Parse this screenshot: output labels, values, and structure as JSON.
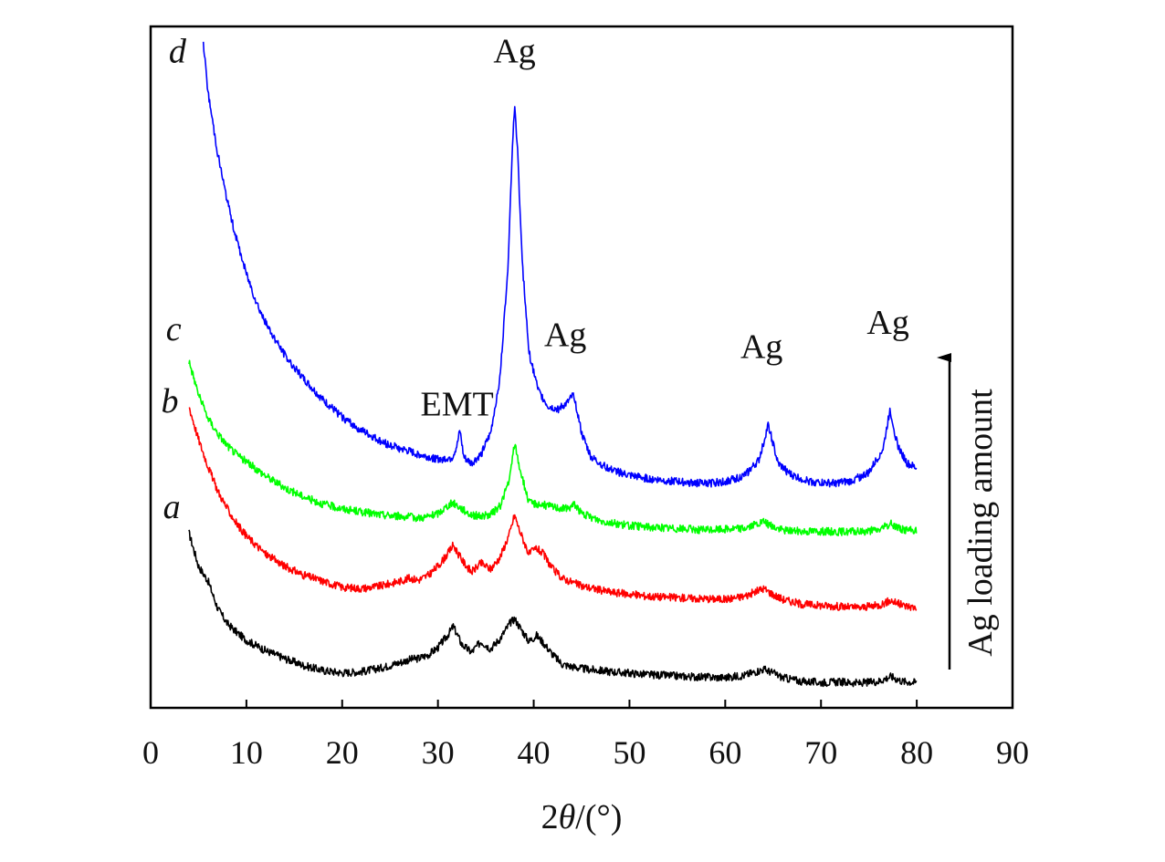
{
  "chart_data": {
    "type": "line",
    "title": "",
    "xlabel": "2θ/(°)",
    "xlabel_parts": {
      "prefix": "2",
      "symbol": "θ",
      "suffix": "/(°)"
    },
    "ylabel": "",
    "xlim": [
      0,
      90
    ],
    "xticks": [
      "0",
      "10",
      "20",
      "30",
      "40",
      "50",
      "60",
      "70",
      "80",
      "90"
    ],
    "yticks": [],
    "grid": false,
    "legend": "none",
    "series": [
      {
        "name": "a",
        "color": "#000000",
        "x": [
          4,
          5,
          6,
          7,
          8,
          9,
          10,
          12,
          14,
          16,
          18,
          20,
          22,
          24,
          26,
          27,
          28,
          29,
          30,
          31,
          31.6,
          32.5,
          33.5,
          34.5,
          35.5,
          36.5,
          37.5,
          38,
          38.5,
          39.5,
          40.3,
          41,
          42,
          43,
          45,
          48,
          52,
          56,
          60,
          62,
          64,
          65,
          66,
          68,
          70,
          72,
          74,
          76,
          77.3,
          78.5,
          80
        ],
        "y": [
          2.9,
          2.35,
          2.1,
          1.65,
          1.4,
          1.25,
          1.12,
          0.95,
          0.82,
          0.7,
          0.62,
          0.58,
          0.6,
          0.66,
          0.75,
          0.8,
          0.82,
          0.88,
          1.0,
          1.2,
          1.35,
          1.05,
          0.92,
          1.1,
          0.98,
          1.15,
          1.4,
          1.48,
          1.35,
          1.1,
          1.2,
          1.08,
          0.88,
          0.72,
          0.65,
          0.6,
          0.55,
          0.52,
          0.5,
          0.54,
          0.64,
          0.58,
          0.5,
          0.44,
          0.42,
          0.43,
          0.41,
          0.44,
          0.52,
          0.44,
          0.42
        ]
      },
      {
        "name": "b",
        "color": "#ff0000",
        "x": [
          4,
          5,
          6,
          7,
          8,
          9,
          10,
          12,
          14,
          16,
          18,
          20,
          22,
          24,
          26,
          27,
          28,
          29,
          30,
          31,
          31.6,
          32.5,
          33.5,
          34.5,
          35.5,
          36.5,
          37.5,
          38,
          38.5,
          39.5,
          40.3,
          41,
          42,
          43,
          45,
          48,
          52,
          56,
          60,
          62,
          64,
          65,
          66,
          68,
          70,
          72,
          74,
          76,
          77.3,
          78.5,
          80
        ],
        "y": [
          5.0,
          4.45,
          4.0,
          3.6,
          3.3,
          3.05,
          2.85,
          2.55,
          2.35,
          2.2,
          2.1,
          2.0,
          1.98,
          2.02,
          2.1,
          2.15,
          2.12,
          2.2,
          2.35,
          2.55,
          2.7,
          2.45,
          2.25,
          2.4,
          2.3,
          2.5,
          2.9,
          3.2,
          2.95,
          2.55,
          2.65,
          2.55,
          2.3,
          2.15,
          2.02,
          1.92,
          1.85,
          1.82,
          1.8,
          1.85,
          1.98,
          1.88,
          1.8,
          1.72,
          1.7,
          1.68,
          1.66,
          1.7,
          1.78,
          1.7,
          1.66
        ]
      },
      {
        "name": "c",
        "color": "#00ff00",
        "x": [
          4,
          5,
          6,
          7,
          8,
          9,
          10,
          12,
          14,
          16,
          18,
          20,
          22,
          24,
          26,
          28,
          29,
          30,
          31,
          31.6,
          32.5,
          33.5,
          34.5,
          35.5,
          36.5,
          37.5,
          38,
          38.5,
          39.5,
          40.5,
          41.5,
          42.5,
          43.5,
          44.3,
          45,
          47,
          50,
          54,
          58,
          62,
          64,
          65,
          66,
          68,
          70,
          72,
          74,
          76,
          77.3,
          78.5,
          80
        ],
        "y": [
          5.75,
          5.2,
          4.8,
          4.55,
          4.35,
          4.2,
          4.08,
          3.85,
          3.65,
          3.5,
          3.38,
          3.3,
          3.25,
          3.2,
          3.18,
          3.15,
          3.17,
          3.22,
          3.35,
          3.4,
          3.3,
          3.2,
          3.18,
          3.2,
          3.35,
          3.8,
          4.4,
          4.0,
          3.4,
          3.38,
          3.35,
          3.32,
          3.3,
          3.38,
          3.22,
          3.1,
          3.02,
          2.98,
          2.95,
          2.98,
          3.08,
          3.0,
          2.95,
          2.93,
          2.93,
          2.92,
          2.92,
          2.95,
          3.05,
          2.96,
          2.94
        ]
      },
      {
        "name": "d",
        "color": "#0000ff",
        "x": [
          5.5,
          6,
          7,
          8,
          9,
          10,
          11,
          12,
          14,
          16,
          18,
          20,
          22,
          24,
          26,
          28,
          30,
          31.5,
          32,
          32.3,
          32.7,
          33.5,
          34.5,
          35.5,
          36.5,
          37.3,
          37.8,
          38,
          38.3,
          38.8,
          39.5,
          40.5,
          41.5,
          42.5,
          43.5,
          44.2,
          45,
          46,
          48,
          50,
          52,
          55,
          58,
          60,
          62,
          63.5,
          64.5,
          65.5,
          67,
          69,
          71,
          73,
          75,
          76.5,
          77.2,
          78,
          79,
          80
        ],
        "y": [
          11.0,
          10.2,
          9.2,
          8.4,
          7.75,
          7.2,
          6.75,
          6.38,
          5.85,
          5.45,
          5.1,
          4.82,
          4.6,
          4.42,
          4.3,
          4.2,
          4.12,
          4.15,
          4.35,
          4.6,
          4.15,
          4.05,
          4.2,
          4.55,
          5.5,
          7.3,
          9.4,
          10.0,
          9.3,
          7.4,
          5.9,
          5.25,
          5.0,
          4.95,
          5.05,
          5.2,
          4.55,
          4.15,
          3.95,
          3.85,
          3.8,
          3.75,
          3.72,
          3.75,
          3.85,
          4.1,
          4.7,
          4.05,
          3.85,
          3.75,
          3.72,
          3.75,
          3.9,
          4.3,
          4.95,
          4.35,
          4.05,
          3.97
        ]
      }
    ],
    "peak_labels": [
      {
        "text": "EMT",
        "x": 32,
        "y": 4.85
      },
      {
        "text": "Ag",
        "x": 38,
        "y": 10.7
      },
      {
        "text": "Ag",
        "x": 43.3,
        "y": 6.0
      },
      {
        "text": "Ag",
        "x": 63.8,
        "y": 5.8
      },
      {
        "text": "Ag",
        "x": 77,
        "y": 6.2
      }
    ],
    "curve_labels": [
      {
        "text": "a",
        "series": "a",
        "x": 2.2,
        "y": 3.15
      },
      {
        "text": "b",
        "series": "b",
        "x": 2.0,
        "y": 4.9
      },
      {
        "text": "c",
        "series": "c",
        "x": 2.4,
        "y": 6.1
      },
      {
        "text": "d",
        "series": "d",
        "x": 2.8,
        "y": 10.7
      }
    ],
    "annotation": {
      "text": "Ag loading amount",
      "direction": "up"
    }
  }
}
